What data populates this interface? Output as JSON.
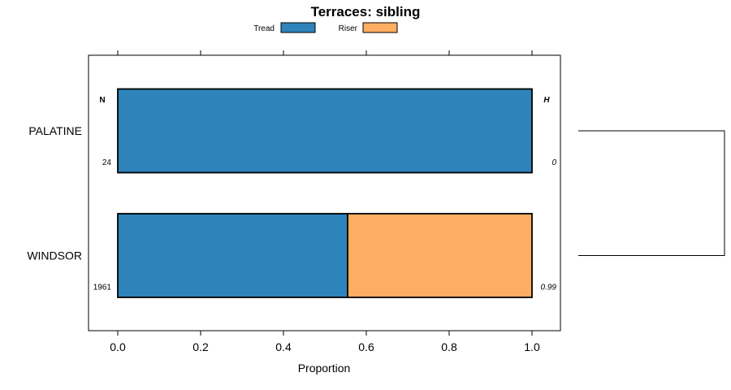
{
  "chart_data": {
    "type": "bar",
    "orientation": "horizontal",
    "stacked": true,
    "title": "Terraces: sibling",
    "xlabel": "Proportion",
    "ylabel": "",
    "xlim": [
      -0.07,
      1.07
    ],
    "x_ticks": [
      0.0,
      0.2,
      0.4,
      0.6,
      0.8,
      1.0
    ],
    "x_tick_labels": [
      "0.0",
      "0.2",
      "0.4",
      "0.6",
      "0.8",
      "1.0"
    ],
    "legend": [
      {
        "name": "Tread",
        "color": "#2e83bb"
      },
      {
        "name": "Riser",
        "color": "#fdae63"
      }
    ],
    "categories": [
      "PALATINE",
      "WINDSOR"
    ],
    "series": [
      {
        "name": "Tread",
        "values": [
          1.0,
          0.555
        ]
      },
      {
        "name": "Riser",
        "values": [
          0.0,
          0.445
        ]
      }
    ],
    "n_header": "N",
    "h_header": "H",
    "n_values": [
      "24",
      "1961"
    ],
    "h_values": [
      "0",
      "0.99"
    ],
    "dendrogram": "joins PALATINE and WINDSOR"
  }
}
